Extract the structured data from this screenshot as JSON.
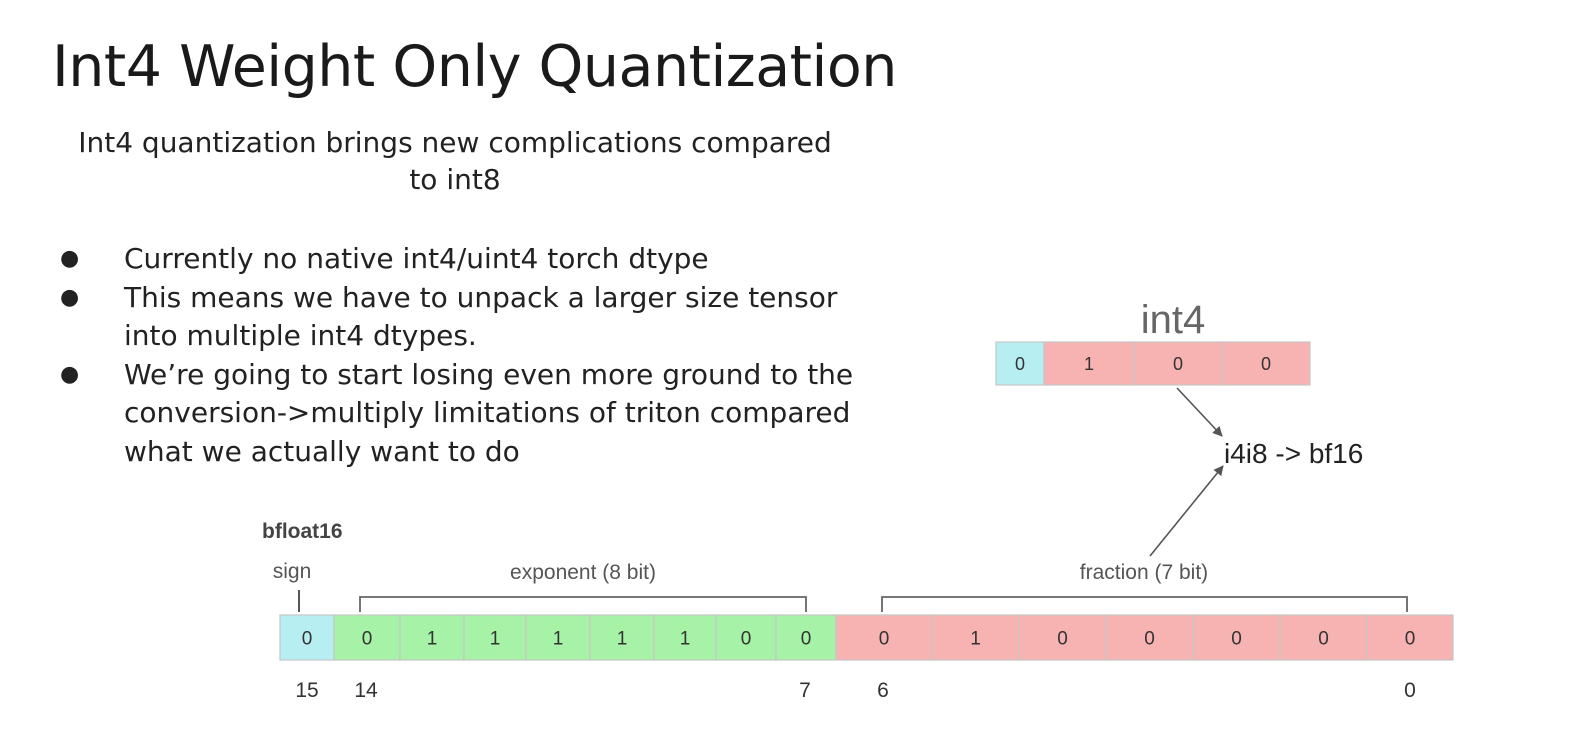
{
  "slide": {
    "title": "Int4 Weight Only Quantization",
    "subtitle_line1": "Int4 quantization brings new complications compared",
    "subtitle_line2": "to int8",
    "bullets": [
      "Currently no native int4/uint4 torch dtype",
      "This means we have to unpack a larger size tensor into multiple int4 dtypes.",
      "We’re going to start losing even more ground to the conversion->multiply limitations of triton compared what we actually want to do"
    ]
  },
  "diagram": {
    "bfloat16_label": "bfloat16",
    "sign_label": "sign",
    "exponent_label": "exponent (8 bit)",
    "fraction_label": "fraction (7 bit)",
    "bf16_bits": [
      "0",
      "0",
      "1",
      "1",
      "1",
      "1",
      "1",
      "0",
      "0",
      "0",
      "1",
      "0",
      "0",
      "0",
      "0",
      "0"
    ],
    "bit_index_labels": [
      "15",
      "14",
      "7",
      "6",
      "0"
    ],
    "int4_label": "int4",
    "int4_bits": [
      "0",
      "1",
      "0",
      "0"
    ],
    "conversion_label": "i4i8 -> bf16",
    "colors": {
      "sign": "#b7eef2",
      "exponent": "#a6f2a6",
      "fraction": "#f7b2b2",
      "arrow": "#555555"
    }
  }
}
